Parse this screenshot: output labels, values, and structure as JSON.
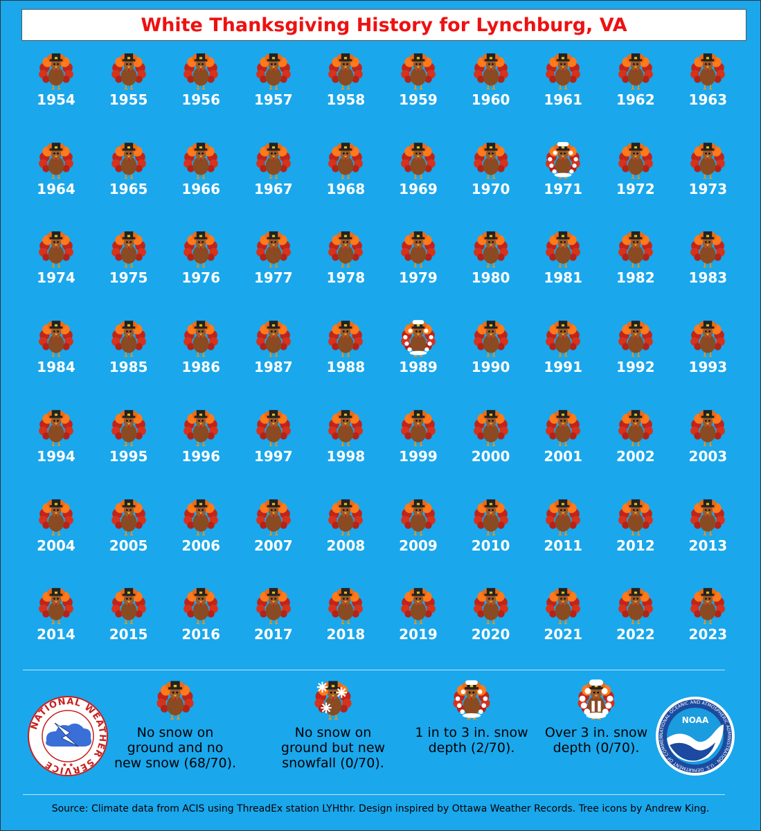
{
  "title": "White Thanksgiving History for Lynchburg, VA",
  "years": [
    {
      "year": "1954",
      "cat": "none"
    },
    {
      "year": "1955",
      "cat": "none"
    },
    {
      "year": "1956",
      "cat": "none"
    },
    {
      "year": "1957",
      "cat": "none"
    },
    {
      "year": "1958",
      "cat": "none"
    },
    {
      "year": "1959",
      "cat": "none"
    },
    {
      "year": "1960",
      "cat": "none"
    },
    {
      "year": "1961",
      "cat": "none"
    },
    {
      "year": "1962",
      "cat": "none"
    },
    {
      "year": "1963",
      "cat": "none"
    },
    {
      "year": "1964",
      "cat": "none"
    },
    {
      "year": "1965",
      "cat": "none"
    },
    {
      "year": "1966",
      "cat": "none"
    },
    {
      "year": "1967",
      "cat": "none"
    },
    {
      "year": "1968",
      "cat": "none"
    },
    {
      "year": "1969",
      "cat": "none"
    },
    {
      "year": "1970",
      "cat": "none"
    },
    {
      "year": "1971",
      "cat": "1to3"
    },
    {
      "year": "1972",
      "cat": "none"
    },
    {
      "year": "1973",
      "cat": "none"
    },
    {
      "year": "1974",
      "cat": "none"
    },
    {
      "year": "1975",
      "cat": "none"
    },
    {
      "year": "1976",
      "cat": "none"
    },
    {
      "year": "1977",
      "cat": "none"
    },
    {
      "year": "1978",
      "cat": "none"
    },
    {
      "year": "1979",
      "cat": "none"
    },
    {
      "year": "1980",
      "cat": "none"
    },
    {
      "year": "1981",
      "cat": "none"
    },
    {
      "year": "1982",
      "cat": "none"
    },
    {
      "year": "1983",
      "cat": "none"
    },
    {
      "year": "1984",
      "cat": "none"
    },
    {
      "year": "1985",
      "cat": "none"
    },
    {
      "year": "1986",
      "cat": "none"
    },
    {
      "year": "1987",
      "cat": "none"
    },
    {
      "year": "1988",
      "cat": "none"
    },
    {
      "year": "1989",
      "cat": "1to3"
    },
    {
      "year": "1990",
      "cat": "none"
    },
    {
      "year": "1991",
      "cat": "none"
    },
    {
      "year": "1992",
      "cat": "none"
    },
    {
      "year": "1993",
      "cat": "none"
    },
    {
      "year": "1994",
      "cat": "none"
    },
    {
      "year": "1995",
      "cat": "none"
    },
    {
      "year": "1996",
      "cat": "none"
    },
    {
      "year": "1997",
      "cat": "none"
    },
    {
      "year": "1998",
      "cat": "none"
    },
    {
      "year": "1999",
      "cat": "none"
    },
    {
      "year": "2000",
      "cat": "none"
    },
    {
      "year": "2001",
      "cat": "none"
    },
    {
      "year": "2002",
      "cat": "none"
    },
    {
      "year": "2003",
      "cat": "none"
    },
    {
      "year": "2004",
      "cat": "none"
    },
    {
      "year": "2005",
      "cat": "none"
    },
    {
      "year": "2006",
      "cat": "none"
    },
    {
      "year": "2007",
      "cat": "none"
    },
    {
      "year": "2008",
      "cat": "none"
    },
    {
      "year": "2009",
      "cat": "none"
    },
    {
      "year": "2010",
      "cat": "none"
    },
    {
      "year": "2011",
      "cat": "none"
    },
    {
      "year": "2012",
      "cat": "none"
    },
    {
      "year": "2013",
      "cat": "none"
    },
    {
      "year": "2014",
      "cat": "none"
    },
    {
      "year": "2015",
      "cat": "none"
    },
    {
      "year": "2016",
      "cat": "none"
    },
    {
      "year": "2017",
      "cat": "none"
    },
    {
      "year": "2018",
      "cat": "none"
    },
    {
      "year": "2019",
      "cat": "none"
    },
    {
      "year": "2020",
      "cat": "none"
    },
    {
      "year": "2021",
      "cat": "none"
    },
    {
      "year": "2022",
      "cat": "none"
    },
    {
      "year": "2023",
      "cat": "none"
    }
  ],
  "legend": {
    "none": "No snow on ground and no new snow (68/70).",
    "new_snow": "No snow on ground but new snowfall (0/70).",
    "one_to_three": "1 in to 3 in. snow depth (2/70).",
    "over_three": "Over 3 in. snow depth (0/70)."
  },
  "logos": {
    "nws": "NATIONAL WEATHER SERVICE",
    "noaa": "NOAA",
    "noaa_ring": "NATIONAL OCEANIC AND ATMOSPHERIC ADMINISTRATION · U.S. DEPARTMENT OF COMMERCE"
  },
  "source": "Source: Climate data from ACIS using ThreadEx station LYHthr. Design inspired by Ottawa Weather Records. Tree icons by Andrew King.",
  "colors": {
    "background": "#1aa7ec",
    "title_text": "#ee1111",
    "year_text": "#ffffff"
  },
  "icons": {
    "none": "turkey-icon",
    "new_snow": "turkey-snowflake-icon",
    "1to3": "snowy-turkey-icon",
    "over3": "snow-covered-turkey-icon"
  }
}
